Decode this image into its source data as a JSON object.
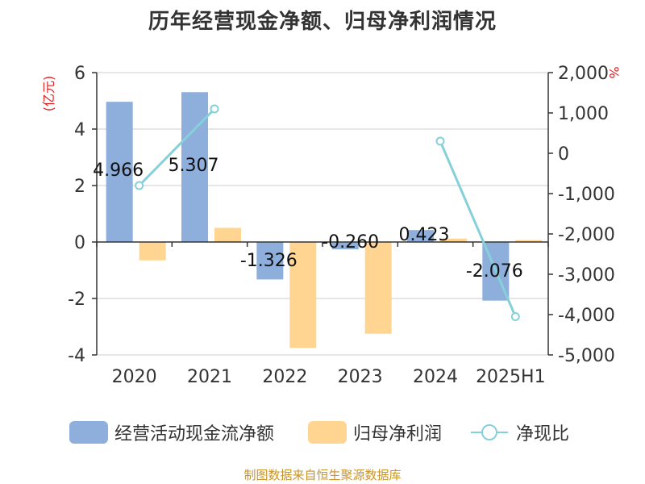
{
  "title": "历年经营现金净额、归母净利润情况",
  "source_note": "制图数据来自恒生聚源数据库",
  "colors": {
    "bar_ocf": "#8eaedc",
    "bar_profit": "#ffd591",
    "line_ratio": "#85d0d9",
    "left_unit_red": "#e02020",
    "grid": "#cccccc",
    "axis": "#333333",
    "text": "#333333"
  },
  "chart_data": {
    "type": "bar",
    "categories": [
      "2020",
      "2021",
      "2022",
      "2023",
      "2024",
      "2025H1"
    ],
    "left_axis": {
      "unit_label": "(亿元)",
      "ylim": [
        -4,
        6
      ],
      "ticks": [
        "6",
        "4",
        "2",
        "0",
        "-2",
        "-4"
      ],
      "tick_values": [
        6,
        4,
        2,
        0,
        -2,
        -4
      ]
    },
    "right_axis": {
      "unit_label": "%",
      "ylim": [
        -5000,
        2000
      ],
      "ticks": [
        "2,000",
        "1,000",
        "0",
        "-1,000",
        "-2,000",
        "-3,000",
        "-4,000",
        "-5,000"
      ],
      "tick_values": [
        2000,
        1000,
        0,
        -1000,
        -2000,
        -3000,
        -4000,
        -5000
      ]
    },
    "series": [
      {
        "name": "经营活动现金流净额",
        "kind": "bar",
        "axis": "left",
        "values": [
          4.966,
          5.307,
          -1.326,
          -0.26,
          0.423,
          -2.076
        ],
        "labels": [
          "4.966",
          "5.307",
          "-1.326",
          "-0.260",
          "0.423",
          "-2.076"
        ]
      },
      {
        "name": "归母净利润",
        "kind": "bar",
        "axis": "left",
        "values": [
          -0.65,
          0.5,
          -3.75,
          -3.25,
          0.12,
          0.07
        ]
      },
      {
        "name": "净现比",
        "kind": "line",
        "axis": "right",
        "values": [
          -800,
          1100,
          null,
          null,
          300,
          -4050
        ]
      }
    ],
    "grid": true,
    "legend_position": "bottom"
  }
}
